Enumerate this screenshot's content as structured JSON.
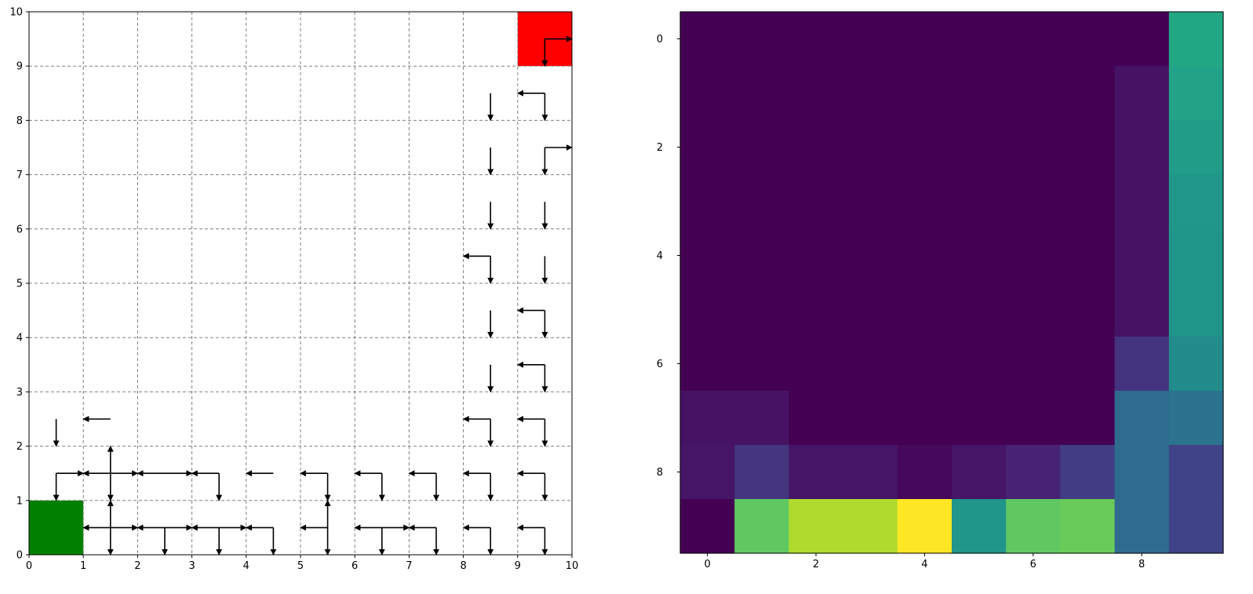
{
  "chart_data": [
    {
      "type": "grid-policy",
      "title": "",
      "xlabel": "",
      "ylabel": "",
      "xlim": [
        0,
        10
      ],
      "ylim": [
        0,
        10
      ],
      "xticks": [
        "0",
        "1",
        "2",
        "3",
        "4",
        "5",
        "6",
        "7",
        "8",
        "9",
        "10"
      ],
      "yticks": [
        "0",
        "1",
        "2",
        "3",
        "4",
        "5",
        "6",
        "7",
        "8",
        "9",
        "10"
      ],
      "grid": true,
      "grid_style": "dashed",
      "start_cell": {
        "x": 0,
        "y": 0,
        "color": "#008000"
      },
      "goal_cell": {
        "x": 9,
        "y": 9,
        "color": "#ff0000"
      },
      "arrow_color": "#000000",
      "cells": [
        {
          "x": 9,
          "y": 9,
          "actions": [
            "down",
            "right"
          ]
        },
        {
          "x": 8,
          "y": 8,
          "actions": [
            "down"
          ]
        },
        {
          "x": 9,
          "y": 8,
          "actions": [
            "down",
            "left"
          ]
        },
        {
          "x": 8,
          "y": 7,
          "actions": [
            "down"
          ]
        },
        {
          "x": 9,
          "y": 7,
          "actions": [
            "down",
            "right"
          ]
        },
        {
          "x": 8,
          "y": 6,
          "actions": [
            "down"
          ]
        },
        {
          "x": 9,
          "y": 6,
          "actions": [
            "down"
          ]
        },
        {
          "x": 8,
          "y": 5,
          "actions": [
            "down",
            "left"
          ]
        },
        {
          "x": 9,
          "y": 5,
          "actions": [
            "down"
          ]
        },
        {
          "x": 8,
          "y": 4,
          "actions": [
            "down"
          ]
        },
        {
          "x": 9,
          "y": 4,
          "actions": [
            "down",
            "left"
          ]
        },
        {
          "x": 8,
          "y": 3,
          "actions": [
            "down"
          ]
        },
        {
          "x": 9,
          "y": 3,
          "actions": [
            "down",
            "left"
          ]
        },
        {
          "x": 0,
          "y": 2,
          "actions": [
            "down"
          ]
        },
        {
          "x": 1,
          "y": 2,
          "actions": [
            "left"
          ]
        },
        {
          "x": 8,
          "y": 2,
          "actions": [
            "down",
            "left"
          ]
        },
        {
          "x": 9,
          "y": 2,
          "actions": [
            "down",
            "left"
          ]
        },
        {
          "x": 0,
          "y": 1,
          "actions": [
            "down",
            "right"
          ]
        },
        {
          "x": 1,
          "y": 1,
          "actions": [
            "up",
            "down",
            "left",
            "right"
          ]
        },
        {
          "x": 2,
          "y": 1,
          "actions": [
            "left",
            "right"
          ]
        },
        {
          "x": 3,
          "y": 1,
          "actions": [
            "down",
            "left"
          ]
        },
        {
          "x": 4,
          "y": 1,
          "actions": [
            "left"
          ]
        },
        {
          "x": 5,
          "y": 1,
          "actions": [
            "down",
            "left"
          ]
        },
        {
          "x": 6,
          "y": 1,
          "actions": [
            "down",
            "left"
          ]
        },
        {
          "x": 7,
          "y": 1,
          "actions": [
            "down",
            "left"
          ]
        },
        {
          "x": 8,
          "y": 1,
          "actions": [
            "down",
            "left"
          ]
        },
        {
          "x": 9,
          "y": 1,
          "actions": [
            "down",
            "left"
          ]
        },
        {
          "x": 1,
          "y": 0,
          "actions": [
            "up",
            "down",
            "left",
            "right"
          ]
        },
        {
          "x": 2,
          "y": 0,
          "actions": [
            "down",
            "left",
            "right"
          ]
        },
        {
          "x": 3,
          "y": 0,
          "actions": [
            "down",
            "left",
            "right"
          ]
        },
        {
          "x": 4,
          "y": 0,
          "actions": [
            "down",
            "left"
          ]
        },
        {
          "x": 5,
          "y": 0,
          "actions": [
            "up",
            "down",
            "left"
          ]
        },
        {
          "x": 6,
          "y": 0,
          "actions": [
            "down",
            "left",
            "right"
          ]
        },
        {
          "x": 7,
          "y": 0,
          "actions": [
            "down",
            "left"
          ]
        },
        {
          "x": 8,
          "y": 0,
          "actions": [
            "down",
            "left"
          ]
        },
        {
          "x": 9,
          "y": 0,
          "actions": [
            "down",
            "left"
          ]
        }
      ]
    },
    {
      "type": "heatmap",
      "title": "",
      "xlabel": "",
      "ylabel": "",
      "colormap": "viridis",
      "xticks": [
        "0",
        "2",
        "4",
        "6",
        "8"
      ],
      "yticks": [
        "0",
        "2",
        "4",
        "6",
        "8"
      ],
      "xlim": [
        -0.5,
        9.5
      ],
      "ylim": [
        9.5,
        -0.5
      ],
      "values": [
        [
          0.0,
          0.0,
          0.0,
          0.0,
          0.0,
          0.0,
          0.0,
          0.0,
          0.0,
          0.6
        ],
        [
          0.0,
          0.0,
          0.0,
          0.0,
          0.0,
          0.0,
          0.0,
          0.0,
          0.05,
          0.58
        ],
        [
          0.0,
          0.0,
          0.0,
          0.0,
          0.0,
          0.0,
          0.0,
          0.0,
          0.05,
          0.55
        ],
        [
          0.0,
          0.0,
          0.0,
          0.0,
          0.0,
          0.0,
          0.0,
          0.0,
          0.05,
          0.53
        ],
        [
          0.0,
          0.0,
          0.0,
          0.0,
          0.0,
          0.0,
          0.0,
          0.0,
          0.05,
          0.52
        ],
        [
          0.0,
          0.0,
          0.0,
          0.0,
          0.0,
          0.0,
          0.0,
          0.0,
          0.05,
          0.52
        ],
        [
          0.0,
          0.0,
          0.0,
          0.0,
          0.0,
          0.0,
          0.0,
          0.0,
          0.15,
          0.48
        ],
        [
          0.05,
          0.05,
          0.0,
          0.0,
          0.0,
          0.0,
          0.0,
          0.0,
          0.35,
          0.38
        ],
        [
          0.06,
          0.16,
          0.06,
          0.06,
          0.02,
          0.06,
          0.1,
          0.18,
          0.35,
          0.2
        ],
        [
          0.0,
          0.75,
          0.88,
          0.88,
          1.0,
          0.52,
          0.75,
          0.77,
          0.35,
          0.2
        ]
      ]
    }
  ]
}
